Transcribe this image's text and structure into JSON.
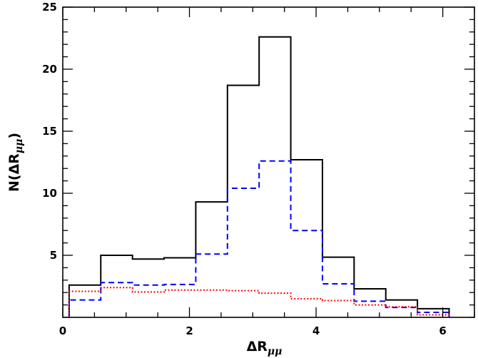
{
  "chart_data": {
    "type": "histogram",
    "xlim": [
      0,
      6.5
    ],
    "ylim": [
      0,
      25
    ],
    "xlabel": {
      "main": "ΔR",
      "sub": "μμ"
    },
    "ylabel": {
      "main": "N(ΔR",
      "sub": "μμ",
      "close": ")"
    },
    "x_ticks_major": [
      0,
      2,
      4,
      6
    ],
    "x_tick_labels": [
      "0",
      "2",
      "4",
      "6"
    ],
    "x_ticks_minor_step": 0.5,
    "y_ticks_major": [
      5,
      10,
      15,
      20,
      25
    ],
    "y_tick_labels": [
      "5",
      "10",
      "15",
      "20",
      "25"
    ],
    "y_ticks_minor_step": 1,
    "grid": false,
    "legend": "none",
    "bin_edges": [
      0.1,
      0.6,
      1.1,
      1.6,
      2.1,
      2.6,
      3.1,
      3.6,
      4.1,
      4.6,
      5.1,
      5.6,
      6.1
    ],
    "series": [
      {
        "style": "solid",
        "color": "#000000",
        "values": [
          2.6,
          5.0,
          4.7,
          4.8,
          9.3,
          18.7,
          22.6,
          12.7,
          4.85,
          2.3,
          1.4,
          0.7
        ]
      },
      {
        "style": "dashed",
        "color": "#0000ff",
        "values": [
          1.4,
          2.8,
          2.6,
          2.65,
          5.1,
          10.4,
          12.6,
          7.0,
          2.7,
          1.3,
          0.8,
          0.4
        ]
      },
      {
        "style": "dotted",
        "color": "#ff0000",
        "values": [
          2.1,
          2.4,
          2.05,
          2.2,
          2.2,
          2.15,
          1.95,
          1.5,
          1.35,
          1.0,
          0.85,
          0.2
        ]
      }
    ]
  }
}
